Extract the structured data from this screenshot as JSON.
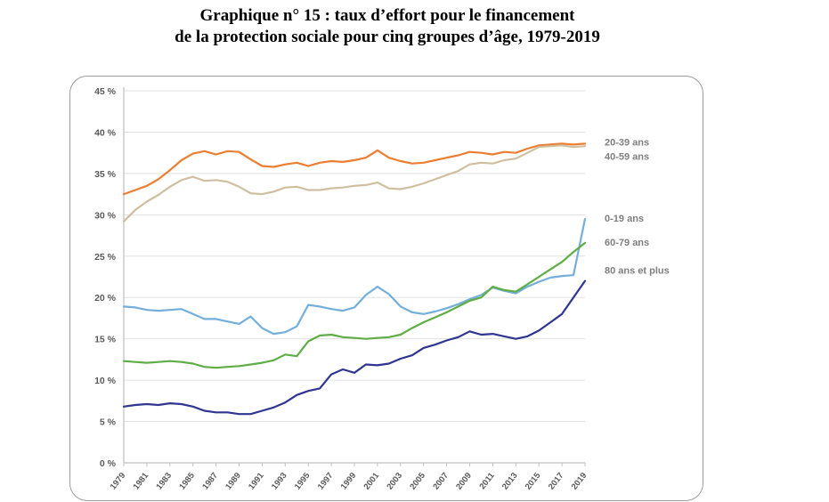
{
  "title": {
    "line1": "Graphique n° 15 : taux d’effort pour le financement",
    "line2": "de la protection sociale pour cinq groupes d’âge, 1979-2019"
  },
  "colors": {
    "grid": "#e0e0e0",
    "axis_line": "#bfbfbf",
    "axis_text": "#595959",
    "legend_text": "#7f7f7f",
    "box_border": "#9b9b9b"
  },
  "chart_data": {
    "type": "line",
    "title": "Graphique n° 15 : taux d’effort pour le financement de la protection sociale pour cinq groupes d’âge, 1979-2019",
    "xlabel": "",
    "ylabel": "",
    "ylim": [
      0,
      45
    ],
    "y_tick_step": 5,
    "y_tick_suffix": " %",
    "grid": true,
    "legend_position": "right",
    "x": [
      1979,
      1980,
      1981,
      1982,
      1983,
      1984,
      1985,
      1986,
      1987,
      1988,
      1989,
      1990,
      1991,
      1992,
      1993,
      1994,
      1995,
      1996,
      1997,
      1998,
      1999,
      2000,
      2001,
      2002,
      2003,
      2004,
      2005,
      2006,
      2007,
      2008,
      2009,
      2010,
      2011,
      2012,
      2013,
      2014,
      2015,
      2016,
      2017,
      2018,
      2019
    ],
    "x_tick_labels": [
      "1979",
      "1981",
      "1983",
      "1985",
      "1987",
      "1989",
      "1991",
      "1993",
      "1995",
      "1997",
      "1999",
      "2001",
      "2003",
      "2005",
      "2007",
      "2009",
      "2011",
      "2013",
      "2015",
      "2017",
      "2019"
    ],
    "series": [
      {
        "name": "20-39 ans",
        "color": "#ED7D31",
        "label_anchor": 38.8,
        "values": [
          32.5,
          33.0,
          33.5,
          34.3,
          35.4,
          36.6,
          37.4,
          37.7,
          37.3,
          37.7,
          37.6,
          36.7,
          35.9,
          35.8,
          36.1,
          36.3,
          35.9,
          36.3,
          36.5,
          36.4,
          36.6,
          36.9,
          37.8,
          36.9,
          36.5,
          36.2,
          36.3,
          36.6,
          36.9,
          37.2,
          37.6,
          37.5,
          37.3,
          37.6,
          37.5,
          38.0,
          38.4,
          38.5,
          38.6,
          38.5,
          38.6
        ]
      },
      {
        "name": "40-59 ans",
        "color": "#CFBFA0",
        "label_anchor": 37.1,
        "values": [
          29.2,
          30.6,
          31.6,
          32.4,
          33.4,
          34.2,
          34.6,
          34.1,
          34.2,
          34.0,
          33.4,
          32.6,
          32.5,
          32.8,
          33.3,
          33.4,
          33.0,
          33.0,
          33.2,
          33.3,
          33.5,
          33.6,
          33.9,
          33.2,
          33.1,
          33.4,
          33.8,
          34.3,
          34.8,
          35.3,
          36.1,
          36.3,
          36.2,
          36.6,
          36.8,
          37.5,
          38.2,
          38.3,
          38.4,
          38.2,
          38.3
        ]
      },
      {
        "name": "0-19 ans",
        "color": "#74AEDB",
        "label_anchor": 29.6,
        "values": [
          18.9,
          18.8,
          18.5,
          18.4,
          18.5,
          18.6,
          18.0,
          17.4,
          17.4,
          17.1,
          16.8,
          17.7,
          16.3,
          15.6,
          15.8,
          16.5,
          19.1,
          18.9,
          18.6,
          18.4,
          18.8,
          20.3,
          21.3,
          20.4,
          18.9,
          18.2,
          18.0,
          18.3,
          18.7,
          19.2,
          19.8,
          20.3,
          21.2,
          20.8,
          20.5,
          21.3,
          21.9,
          22.4,
          22.6,
          22.7,
          29.5
        ]
      },
      {
        "name": "60-79 ans",
        "color": "#5FAD45",
        "label_anchor": 26.7,
        "values": [
          12.3,
          12.2,
          12.1,
          12.2,
          12.3,
          12.2,
          12.0,
          11.6,
          11.5,
          11.6,
          11.7,
          11.9,
          12.1,
          12.4,
          13.1,
          12.9,
          14.7,
          15.4,
          15.5,
          15.2,
          15.1,
          15.0,
          15.1,
          15.2,
          15.5,
          16.3,
          17.0,
          17.6,
          18.2,
          18.9,
          19.6,
          20.0,
          21.3,
          20.9,
          20.7,
          21.6,
          22.5,
          23.4,
          24.3,
          25.5,
          26.6
        ]
      },
      {
        "name": "80 ans et plus",
        "color": "#2F3590",
        "label_anchor": 23.3,
        "values": [
          6.8,
          7.0,
          7.1,
          7.0,
          7.2,
          7.1,
          6.8,
          6.3,
          6.1,
          6.1,
          5.9,
          5.9,
          6.3,
          6.7,
          7.3,
          8.2,
          8.7,
          9.0,
          10.7,
          11.3,
          10.9,
          11.9,
          11.8,
          12.0,
          12.6,
          13.0,
          13.9,
          14.3,
          14.8,
          15.2,
          15.9,
          15.5,
          15.6,
          15.3,
          15.0,
          15.3,
          16.0,
          17.0,
          18.0,
          20.0,
          22.0
        ]
      }
    ]
  }
}
